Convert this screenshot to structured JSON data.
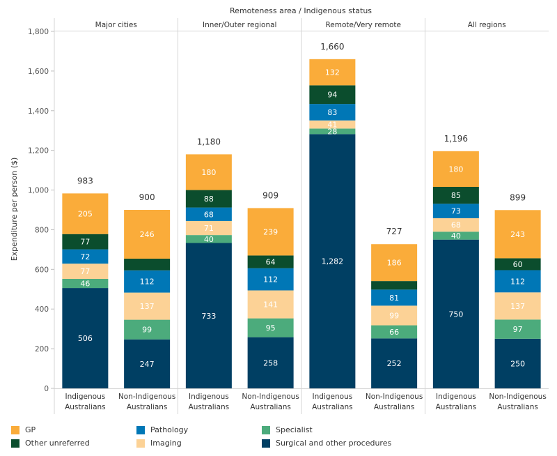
{
  "chart_data": {
    "type": "stacked-bar",
    "title": "Remoteness area  /  Indigenous status",
    "ylabel": "Expenditure per person ($)",
    "ylim": [
      0,
      1800
    ],
    "yticks": [
      0,
      200,
      400,
      600,
      800,
      1000,
      1200,
      1400,
      1600,
      1800
    ],
    "ytick_labels": [
      "0",
      "200",
      "400",
      "600",
      "800",
      "1,000",
      "1,200",
      "1,400",
      "1,600",
      "1,800"
    ],
    "panels": [
      "Major cities",
      "Inner/Outer regional",
      "Remote/Very remote",
      "All regions"
    ],
    "groups": [
      {
        "panel": "Major cities",
        "label": [
          "Indigenous",
          "Australians"
        ],
        "total_label": "983",
        "values": {
          "surgical": 506,
          "specialist": 46,
          "imaging": 77,
          "pathology": 72,
          "other_unreferred": 77,
          "gp": 205
        },
        "labels": {
          "surgical": "506",
          "specialist": "46",
          "imaging": "77",
          "pathology": "72",
          "other_unreferred": "77",
          "gp": "205"
        }
      },
      {
        "panel": "Major cities",
        "label": [
          "Non-Indigenous",
          "Australians"
        ],
        "total_label": "900",
        "values": {
          "surgical": 247,
          "specialist": 99,
          "imaging": 137,
          "pathology": 112,
          "other_unreferred": 59,
          "gp": 246
        },
        "labels": {
          "surgical": "247",
          "specialist": "99",
          "imaging": "137",
          "pathology": "112",
          "other_unreferred": "",
          "gp": "246"
        }
      },
      {
        "panel": "Inner/Outer regional",
        "label": [
          "Indigenous",
          "Australians"
        ],
        "total_label": "1,180",
        "values": {
          "surgical": 733,
          "specialist": 40,
          "imaging": 71,
          "pathology": 68,
          "other_unreferred": 88,
          "gp": 180
        },
        "labels": {
          "surgical": "733",
          "specialist": "40",
          "imaging": "71",
          "pathology": "68",
          "other_unreferred": "88",
          "gp": "180"
        }
      },
      {
        "panel": "Inner/Outer regional",
        "label": [
          "Non-Indigenous",
          "Australians"
        ],
        "total_label": "909",
        "values": {
          "surgical": 258,
          "specialist": 95,
          "imaging": 141,
          "pathology": 112,
          "other_unreferred": 64,
          "gp": 239
        },
        "labels": {
          "surgical": "258",
          "specialist": "95",
          "imaging": "141",
          "pathology": "112",
          "other_unreferred": "64",
          "gp": "239"
        }
      },
      {
        "panel": "Remote/Very remote",
        "label": [
          "Indigenous",
          "Australians"
        ],
        "total_label": "1,660",
        "values": {
          "surgical": 1282,
          "specialist": 28,
          "imaging": 41,
          "pathology": 83,
          "other_unreferred": 94,
          "gp": 132
        },
        "labels": {
          "surgical": "1,282",
          "specialist": "28",
          "imaging": "41",
          "pathology": "83",
          "other_unreferred": "94",
          "gp": "132"
        }
      },
      {
        "panel": "Remote/Very remote",
        "label": [
          "Non-Indigenous",
          "Australians"
        ],
        "total_label": "727",
        "values": {
          "surgical": 252,
          "specialist": 66,
          "imaging": 99,
          "pathology": 81,
          "other_unreferred": 43,
          "gp": 186
        },
        "labels": {
          "surgical": "252",
          "specialist": "66",
          "imaging": "99",
          "pathology": "81",
          "other_unreferred": "",
          "gp": "186"
        }
      },
      {
        "panel": "All regions",
        "label": [
          "Indigenous",
          "Australians"
        ],
        "total_label": "1,196",
        "values": {
          "surgical": 750,
          "specialist": 40,
          "imaging": 68,
          "pathology": 73,
          "other_unreferred": 85,
          "gp": 180
        },
        "labels": {
          "surgical": "750",
          "specialist": "40",
          "imaging": "68",
          "pathology": "73",
          "other_unreferred": "85",
          "gp": "180"
        }
      },
      {
        "panel": "All regions",
        "label": [
          "Non-Indigenous",
          "Australians"
        ],
        "total_label": "899",
        "values": {
          "surgical": 250,
          "specialist": 97,
          "imaging": 137,
          "pathology": 112,
          "other_unreferred": 60,
          "gp": 243
        },
        "labels": {
          "surgical": "250",
          "specialist": "97",
          "imaging": "137",
          "pathology": "112",
          "other_unreferred": "60",
          "gp": "243"
        }
      }
    ],
    "series": [
      {
        "key": "surgical",
        "name": "Surgical and other procedures",
        "color": "#003f63",
        "text_color": "#ffffff"
      },
      {
        "key": "specialist",
        "name": "Specialist",
        "color": "#4cab7c",
        "text_color": "#ffffff"
      },
      {
        "key": "imaging",
        "name": "Imaging",
        "color": "#fcd296",
        "text_color": "#ffffff"
      },
      {
        "key": "pathology",
        "name": "Pathology",
        "color": "#0077b6",
        "text_color": "#ffffff"
      },
      {
        "key": "other_unreferred",
        "name": "Other unreferred",
        "color": "#0b4d2d",
        "text_color": "#ffffff"
      },
      {
        "key": "gp",
        "name": "GP",
        "color": "#faac3a",
        "text_color": "#ffffff"
      }
    ],
    "legend_order": [
      "gp",
      "pathology",
      "specialist",
      "other_unreferred",
      "imaging",
      "surgical"
    ]
  }
}
